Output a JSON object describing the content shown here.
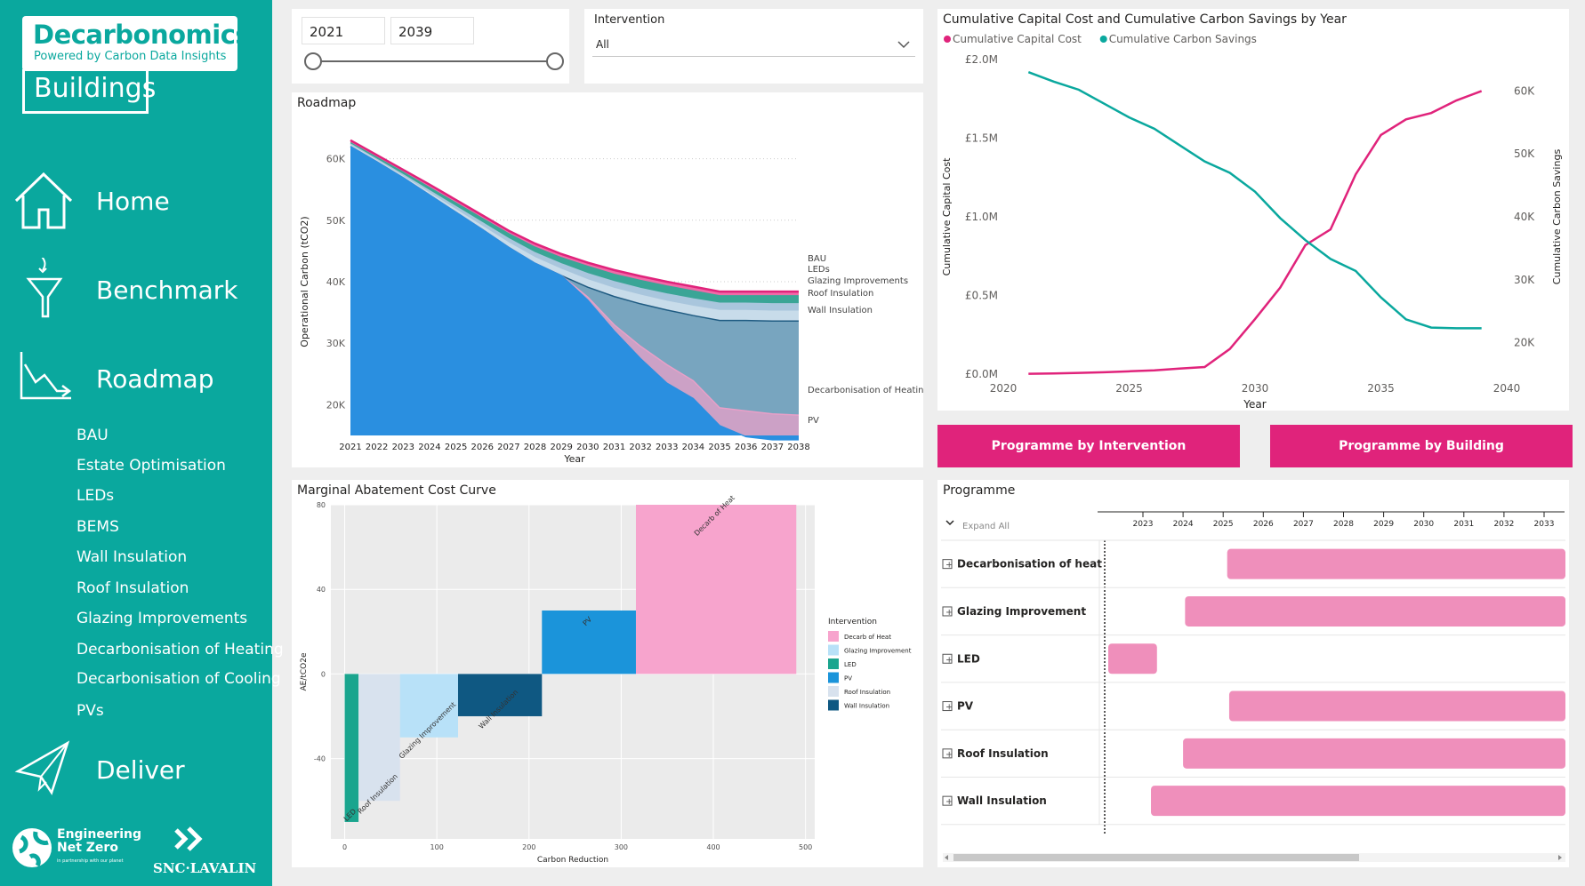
{
  "sidebar": {
    "logo_title": "Decarbonomics",
    "logo_subtitle": "Powered by Carbon Data Insights",
    "logo_buildings": "Buildings",
    "nav": [
      {
        "label": "Home",
        "icon": "home-icon"
      },
      {
        "label": "Benchmark",
        "icon": "funnel-icon"
      },
      {
        "label": "Roadmap",
        "icon": "trend-down-icon"
      },
      {
        "label": "Deliver",
        "icon": "paper-plane-icon"
      }
    ],
    "roadmap_items": [
      "BAU",
      "Estate Optimisation",
      "LEDs",
      "BEMS",
      "Wall Insulation",
      "Roof Insulation",
      "Glazing Improvements",
      "Decarbonisation of Heating",
      "Decarbonisation of Cooling",
      "PVs"
    ],
    "footer_logo1": "Engineering Net Zero",
    "footer_logo1_tag": "in partnership with our planet",
    "footer_logo2": "SNC·LAVALIN"
  },
  "filters": {
    "year_start": "2021",
    "year_end": "2039",
    "intervention_label": "Intervention",
    "intervention_value": "All"
  },
  "buttons": {
    "programme_by_intervention": "Programme by Intervention",
    "programme_by_building": "Programme by Building"
  },
  "colors": {
    "teal": "#0aa89e",
    "pink": "#e0237b",
    "roadmap_blue": "#5f9fce"
  },
  "chart_data": [
    {
      "id": "roadmap",
      "type": "area",
      "title": "Roadmap",
      "xlabel": "Year",
      "ylabel": "Operational Carbon (tCO2)",
      "ylim": [
        15000,
        65000
      ],
      "yticks": [
        "20K",
        "30K",
        "40K",
        "50K",
        "60K"
      ],
      "x": [
        2021,
        2022,
        2023,
        2024,
        2025,
        2026,
        2027,
        2028,
        2029,
        2030,
        2031,
        2032,
        2033,
        2034,
        2035,
        2036,
        2037,
        2038
      ],
      "series": [
        {
          "name": "BAU",
          "color": "#e0237b",
          "values": [
            63000,
            60600,
            58200,
            55800,
            53300,
            50800,
            48300,
            46200,
            44500,
            43100,
            41900,
            40900,
            40000,
            39200,
            38400,
            38400,
            38400,
            38400
          ]
        },
        {
          "name": "LEDs",
          "color": "#3aa596",
          "values": [
            62600,
            60200,
            57800,
            55300,
            52800,
            50300,
            47800,
            45600,
            43900,
            42500,
            41200,
            40200,
            39300,
            38500,
            37700,
            37700,
            37700,
            37700
          ]
        },
        {
          "name": "Glazing Improvements",
          "color": "#a9c6dd",
          "values": [
            62400,
            59900,
            57400,
            54800,
            52200,
            49600,
            47000,
            44700,
            42900,
            41300,
            40000,
            38900,
            38000,
            37200,
            36500,
            36500,
            36400,
            36400
          ]
        },
        {
          "name": "Roof Insulation",
          "color": "#c8dcea",
          "values": [
            62200,
            59700,
            57100,
            54400,
            51700,
            49000,
            46300,
            43900,
            42000,
            40300,
            38900,
            37800,
            36800,
            36000,
            35300,
            35300,
            35200,
            35200
          ]
        },
        {
          "name": "Wall Insulation",
          "color": "#1f5b82",
          "values": [
            62000,
            59500,
            56900,
            54100,
            51300,
            48500,
            45600,
            43000,
            41000,
            39100,
            37600,
            36400,
            35400,
            34500,
            33700,
            33700,
            33600,
            33600
          ]
        },
        {
          "name": "Decarbonisation of Heating",
          "color": "#e8a0c8",
          "values": [
            62000,
            59500,
            56900,
            54100,
            51300,
            48500,
            45600,
            43000,
            41000,
            37500,
            33000,
            29500,
            26500,
            23900,
            19500,
            19000,
            18500,
            18300
          ]
        },
        {
          "name": "PV",
          "color": "#2a8fe0",
          "values": [
            62000,
            59500,
            56900,
            54100,
            51300,
            48500,
            45600,
            43000,
            41000,
            37000,
            32000,
            27500,
            23500,
            21000,
            16600,
            14800,
            14300,
            14300
          ]
        }
      ]
    },
    {
      "id": "cumulative",
      "type": "line",
      "title": "Cumulative Capital Cost and Cumulative Carbon Savings by Year",
      "xlabel": "Year",
      "ylabel": "Cumulative Capital Cost",
      "y2label": "Cumulative Carbon Savings",
      "xlim": [
        2020,
        2040
      ],
      "xticks": [
        "2020",
        "2025",
        "2030",
        "2035",
        "2040"
      ],
      "ylim": [
        0,
        2000000
      ],
      "yticks": [
        "£0.0M",
        "£0.5M",
        "£1.0M",
        "£1.5M",
        "£2.0M"
      ],
      "y2lim": [
        15000,
        65000
      ],
      "y2ticks": [
        "20K",
        "30K",
        "40K",
        "50K",
        "60K"
      ],
      "legend": "top-left",
      "series": [
        {
          "name": "Cumulative Capital Cost",
          "axis": "left",
          "color": "#e0237b",
          "x": [
            2021,
            2022,
            2023,
            2024,
            2025,
            2026,
            2027,
            2028,
            2029,
            2030,
            2031,
            2032,
            2033,
            2034,
            2035,
            2036,
            2037,
            2038,
            2039
          ],
          "values": [
            2000,
            4000,
            8000,
            12000,
            18000,
            24000,
            35000,
            45000,
            160000,
            350000,
            550000,
            820000,
            920000,
            1270000,
            1520000,
            1620000,
            1660000,
            1740000,
            1800000
          ]
        },
        {
          "name": "Cumulative Carbon Savings",
          "axis": "right",
          "color": "#0aa89e",
          "x": [
            2021,
            2022,
            2023,
            2024,
            2025,
            2026,
            2027,
            2028,
            2029,
            2030,
            2031,
            2032,
            2033,
            2034,
            2035,
            2036,
            2037,
            2038,
            2039
          ],
          "values": [
            63000,
            61500,
            60200,
            58000,
            55800,
            54000,
            51400,
            48800,
            47000,
            44000,
            39800,
            36300,
            33300,
            31400,
            27200,
            23700,
            22400,
            22300,
            22300
          ]
        }
      ]
    },
    {
      "id": "macc",
      "type": "bar",
      "title": "Marginal Abatement Cost Curve",
      "xlabel": "Carbon Reduction",
      "ylabel": "AE/tCO2e",
      "xlim": [
        -15,
        510
      ],
      "xticks": [
        0,
        100,
        200,
        300,
        400,
        500
      ],
      "ylim": [
        -78,
        80
      ],
      "yticks": [
        -40,
        0,
        40,
        80
      ],
      "legend_title": "Intervention",
      "legend": "right",
      "bars": [
        {
          "label": "LED",
          "legend": "LED",
          "color": "#1aa58e",
          "x0": 0,
          "x1": 15,
          "value": -70
        },
        {
          "label": "Roof Insulation",
          "legend": "Roof Insulation",
          "color": "#d8e2ee",
          "x0": 15,
          "x1": 60,
          "value": -60
        },
        {
          "label": "Glazing Improvement",
          "legend": "Glazing Improvement",
          "color": "#b8e1f8",
          "x0": 60,
          "x1": 123,
          "value": -30
        },
        {
          "label": "Wall Insulation",
          "legend": "Wall Insulation",
          "color": "#0f5882",
          "x0": 123,
          "x1": 214,
          "value": -20
        },
        {
          "label": "PV",
          "legend": "PV",
          "color": "#1b94da",
          "x0": 214,
          "x1": 316,
          "value": 30
        },
        {
          "label": "Decarb of Heat",
          "legend": "Decarb of Heat",
          "color": "#f7a4cd",
          "x0": 316,
          "x1": 490,
          "value": 80
        }
      ]
    },
    {
      "id": "programme",
      "type": "gantt",
      "title": "Programme",
      "expand_label": "Expand All",
      "years": [
        "2023",
        "2024",
        "2025",
        "2026",
        "2027",
        "2028",
        "2029",
        "2030",
        "2031",
        "2032",
        "2033"
      ],
      "rows": [
        {
          "label": "Decarbonisation of heat",
          "start": 2025.1,
          "end": 2033.6
        },
        {
          "label": "Glazing Improvement",
          "start": 2024.05,
          "end": 2033.6
        },
        {
          "label": "LED",
          "start": 2022.1,
          "end": 2023.35
        },
        {
          "label": "PV",
          "start": 2025.15,
          "end": 2033.6
        },
        {
          "label": "Roof Insulation",
          "start": 2024.0,
          "end": 2033.6
        },
        {
          "label": "Wall Insulation",
          "start": 2023.2,
          "end": 2033.6
        }
      ]
    }
  ]
}
